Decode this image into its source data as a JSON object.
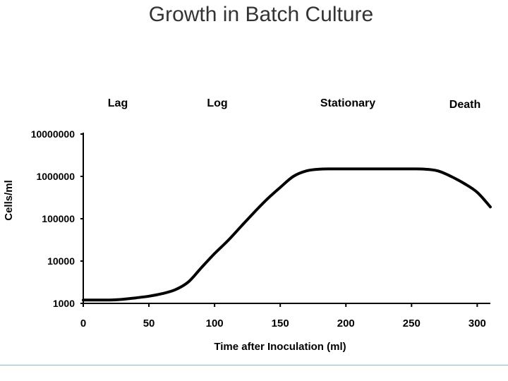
{
  "slide": {
    "title": "Growth in Batch Culture",
    "accent_line_color": "#7fbfcf"
  },
  "chart_data": {
    "type": "line",
    "title": "Growth in Batch Culture",
    "xlabel": "Time after Inoculation (ml)",
    "ylabel": "Cells/ml",
    "x_scale": "linear",
    "y_scale": "log",
    "xlim": [
      0,
      310
    ],
    "ylim": [
      1000,
      10000000
    ],
    "x_ticks": [
      "0",
      "50",
      "100",
      "150",
      "200",
      "250",
      "300"
    ],
    "y_ticks": [
      "1000",
      "10000",
      "100000",
      "1000000",
      "10000000"
    ],
    "grid": false,
    "legend": "none",
    "line_color": "#000000",
    "phases": [
      "Lag",
      "Log",
      "Stationary",
      "Death"
    ],
    "series": [
      {
        "x": [
          0,
          10,
          20,
          30,
          40,
          50,
          60,
          70,
          80,
          90,
          100,
          110,
          120,
          130,
          140,
          150,
          160,
          170,
          180,
          190,
          200,
          210,
          220,
          230,
          240,
          250,
          260,
          270,
          280,
          290,
          300,
          310
        ],
        "y": [
          1200,
          1200,
          1200,
          1250,
          1350,
          1480,
          1700,
          2100,
          3200,
          7000,
          15000,
          30000,
          65000,
          140000,
          290000,
          550000,
          1000000,
          1350000,
          1480000,
          1500000,
          1500000,
          1500000,
          1500000,
          1500000,
          1500000,
          1500000,
          1480000,
          1350000,
          1000000,
          680000,
          420000,
          190000
        ]
      }
    ]
  }
}
